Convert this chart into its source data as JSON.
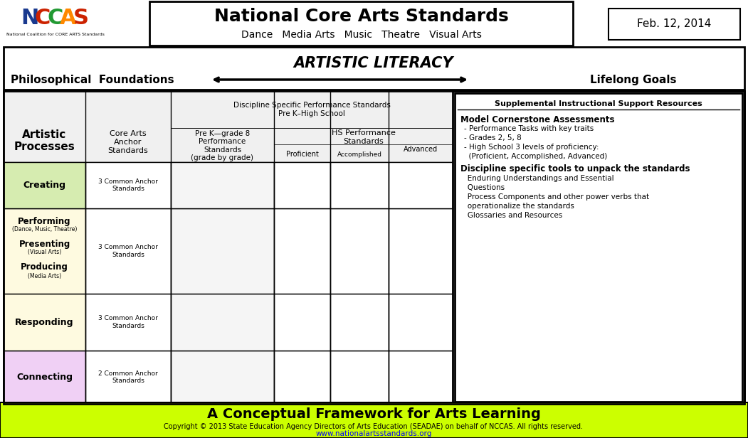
{
  "title": "National Core Arts Standards",
  "subtitle": "Dance   Media Arts   Music   Theatre   Visual Arts",
  "date_box": "Feb. 12, 2014",
  "artistic_literacy": "Artistic Literacy",
  "phil_foundations": "Philosophical  Foundations",
  "lifelong_goals": "Lifelong Goals",
  "discipline_header_line1": "Discipline Specific Performance Standards",
  "discipline_header_line2": "Pre K–High School",
  "col1_header": "Artistic\nProcesses",
  "col2_header": "Core Arts\nAnchor\nStandards",
  "col3_header": "Pre K—grade 8\nPerformance\nStandards\n(grade by grade)",
  "hs_header": "HS Performance\nStandards",
  "proficient": "Proficient",
  "accomplished": "Accomplished",
  "advanced": "Advanced",
  "row_names": [
    "Creating",
    "Performing",
    "Responding",
    "Connecting"
  ],
  "row_anchors": [
    "3 Common Anchor\nStandards",
    "3 Common Anchor\nStandards",
    "3 Common Anchor\nStandards",
    "2 Common Anchor\nStandards"
  ],
  "row_colors": [
    "#d6ecb0",
    "#fefae0",
    "#fefae0",
    "#f0d0f5"
  ],
  "supplemental_title": "Supplemental Instructional Support Resources",
  "model_header": "Model Cornerstone Assessments",
  "model_items": [
    "- Performance Tasks with key traits",
    "- Grades 2, 5, 8",
    "- High School 3 levels of proficiency:",
    "  (Proficient, Accomplished, Advanced)"
  ],
  "discipline_tools_header": "Discipline specific tools to unpack the standards",
  "discipline_tools_items": [
    "   Enduring Understandings and Essential",
    "   Questions",
    "   Process Components and other power verbs that",
    "   operationalize the standards",
    "   Glossaries and Resources"
  ],
  "footer_main": "A Conceptual Framework for Arts Learning",
  "footer_copy": "Copyright © 2013 State Education Agency Directors of Arts Education (SEADAE) on behalf of NCCAS. All rights reserved.",
  "footer_url": "www.nationalartsstandards.org",
  "footer_bg": "#ccff00",
  "bg_white": "#ffffff",
  "bg_gray": "#f0f0f0",
  "border": "#000000",
  "nccas_colors": [
    "#1a3a8f",
    "#cc2200",
    "#229933",
    "#ff8800"
  ]
}
